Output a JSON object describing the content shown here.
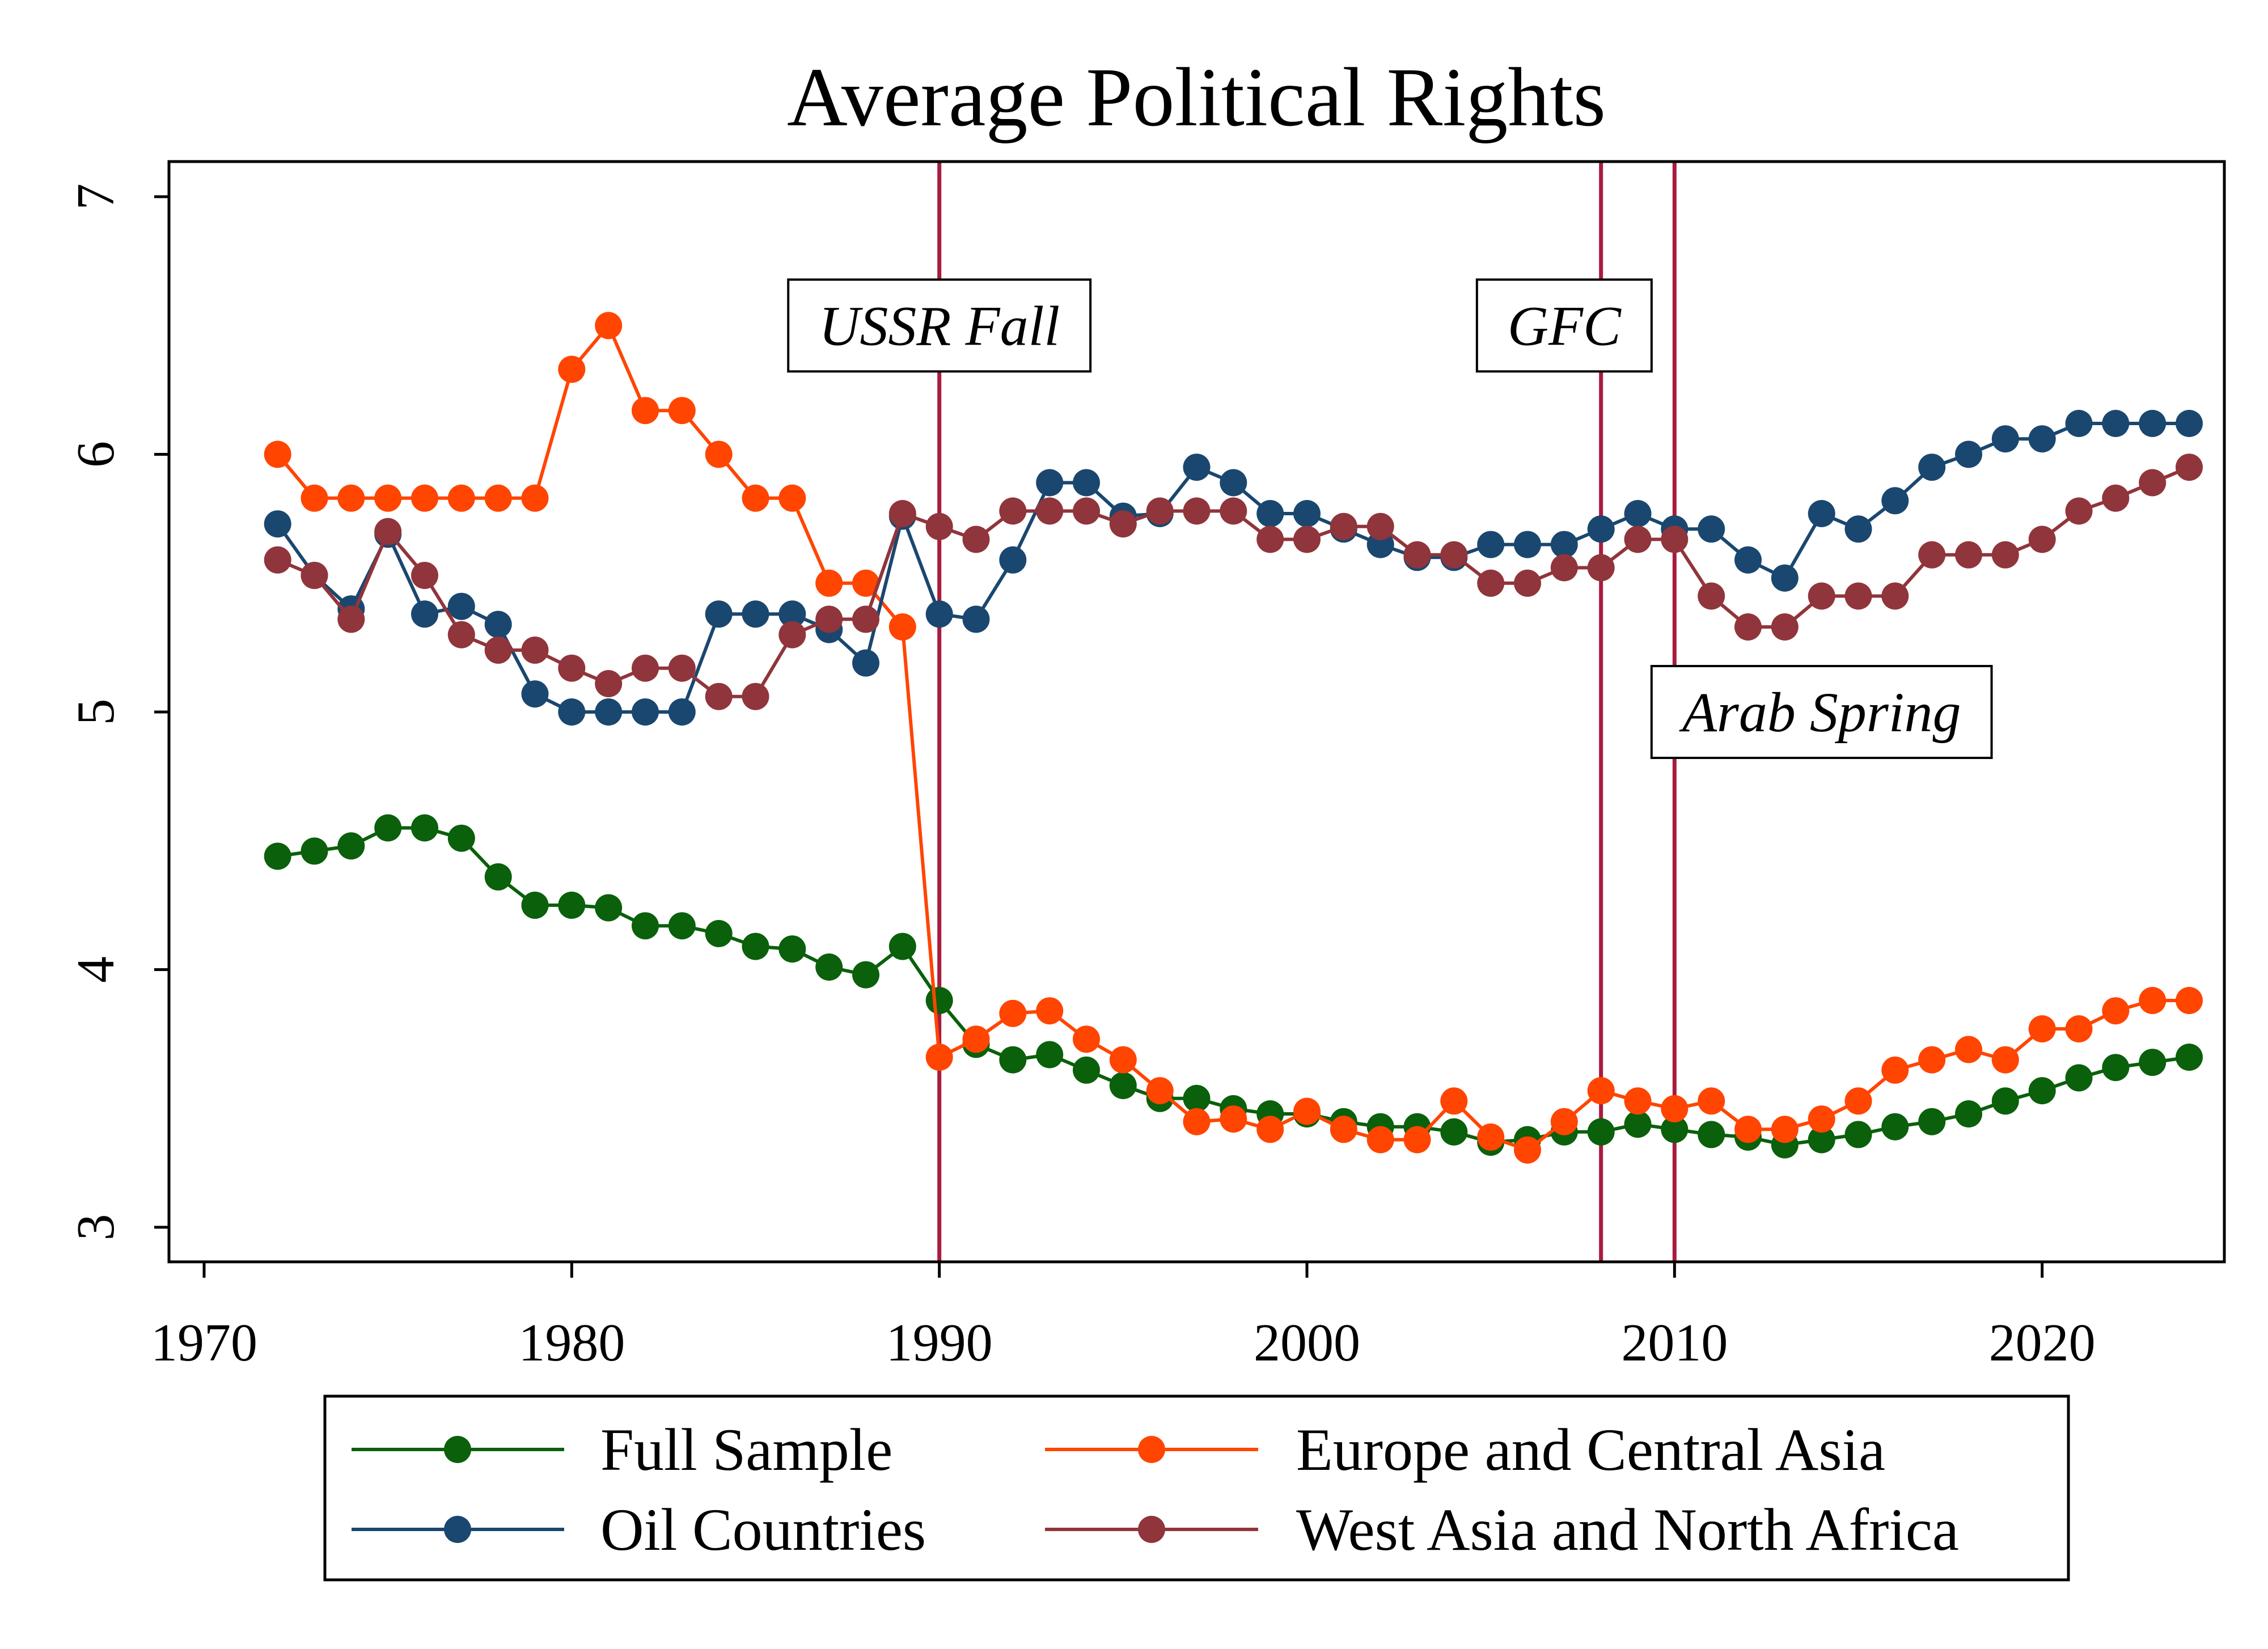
{
  "chart_data": {
    "type": "line",
    "title": "Average Political Rights",
    "xlim": [
      1970,
      2024
    ],
    "ylim": [
      3,
      7
    ],
    "xticks": [
      1970,
      1980,
      1990,
      2000,
      2010,
      2020
    ],
    "yticks": [
      3,
      4,
      5,
      6,
      7
    ],
    "grid": false,
    "legend_position": "bottom",
    "x": [
      1972,
      1973,
      1974,
      1975,
      1976,
      1977,
      1978,
      1979,
      1980,
      1981,
      1982,
      1983,
      1984,
      1985,
      1986,
      1987,
      1988,
      1989,
      1990,
      1991,
      1992,
      1993,
      1994,
      1995,
      1996,
      1997,
      1998,
      1999,
      2000,
      2001,
      2002,
      2003,
      2004,
      2005,
      2006,
      2007,
      2008,
      2009,
      2010,
      2011,
      2012,
      2013,
      2014,
      2015,
      2016,
      2017,
      2018,
      2019,
      2020,
      2021,
      2022,
      2023,
      2024
    ],
    "series": [
      {
        "name": "Full Sample",
        "color": "#0a600b",
        "values": [
          4.44,
          4.46,
          4.48,
          4.55,
          4.55,
          4.51,
          4.36,
          4.25,
          4.25,
          4.24,
          4.17,
          4.17,
          4.14,
          4.09,
          4.08,
          4.01,
          3.98,
          4.09,
          3.88,
          3.71,
          3.65,
          3.67,
          3.61,
          3.55,
          3.5,
          3.5,
          3.46,
          3.44,
          3.44,
          3.41,
          3.39,
          3.39,
          3.37,
          3.33,
          3.34,
          3.37,
          3.37,
          3.4,
          3.38,
          3.36,
          3.35,
          3.32,
          3.34,
          3.36,
          3.39,
          3.41,
          3.44,
          3.49,
          3.53,
          3.58,
          3.62,
          3.64,
          3.66
        ]
      },
      {
        "name": "Europe and Central Asia",
        "color": "#ff4500",
        "values": [
          6.0,
          5.83,
          5.83,
          5.83,
          5.83,
          5.83,
          5.83,
          5.83,
          6.33,
          6.5,
          6.17,
          6.17,
          6.0,
          5.83,
          5.83,
          5.5,
          5.5,
          5.33,
          3.66,
          3.73,
          3.83,
          3.84,
          3.73,
          3.65,
          3.53,
          3.41,
          3.42,
          3.38,
          3.45,
          3.38,
          3.34,
          3.34,
          3.49,
          3.35,
          3.3,
          3.41,
          3.53,
          3.49,
          3.46,
          3.49,
          3.38,
          3.38,
          3.42,
          3.49,
          3.61,
          3.65,
          3.69,
          3.65,
          3.77,
          3.77,
          3.84,
          3.88,
          3.88
        ]
      },
      {
        "name": "Oil Countries",
        "color": "#1a476f",
        "values": [
          5.73,
          5.53,
          5.4,
          5.69,
          5.38,
          5.41,
          5.34,
          5.07,
          5.0,
          5.0,
          5.0,
          5.0,
          5.38,
          5.38,
          5.38,
          5.32,
          5.19,
          5.76,
          5.38,
          5.36,
          5.59,
          5.89,
          5.89,
          5.76,
          5.77,
          5.95,
          5.89,
          5.77,
          5.77,
          5.71,
          5.65,
          5.6,
          5.6,
          5.65,
          5.65,
          5.65,
          5.71,
          5.77,
          5.71,
          5.71,
          5.59,
          5.52,
          5.77,
          5.71,
          5.82,
          5.95,
          6.0,
          6.06,
          6.06,
          6.12,
          6.12,
          6.12,
          6.12
        ]
      },
      {
        "name": "West Asia and North Africa",
        "color": "#90353b",
        "values": [
          5.59,
          5.53,
          5.36,
          5.7,
          5.53,
          5.3,
          5.24,
          5.24,
          5.17,
          5.11,
          5.17,
          5.17,
          5.06,
          5.06,
          5.3,
          5.36,
          5.36,
          5.77,
          5.72,
          5.67,
          5.78,
          5.78,
          5.78,
          5.73,
          5.78,
          5.78,
          5.78,
          5.67,
          5.67,
          5.72,
          5.72,
          5.61,
          5.61,
          5.5,
          5.5,
          5.56,
          5.56,
          5.67,
          5.67,
          5.45,
          5.33,
          5.33,
          5.45,
          5.45,
          5.45,
          5.61,
          5.61,
          5.61,
          5.67,
          5.78,
          5.83,
          5.89,
          5.95
        ]
      }
    ],
    "reference_lines": [
      {
        "axis": "x",
        "value": 1990,
        "color": "#a81c3e"
      },
      {
        "axis": "x",
        "value": 2008,
        "color": "#a81c3e"
      },
      {
        "axis": "x",
        "value": 2010,
        "color": "#a81c3e"
      }
    ],
    "annotations": [
      {
        "text": "USSR Fall",
        "x": 1990,
        "y": 6.5
      },
      {
        "text": "GFC",
        "x": 2007,
        "y": 6.5
      },
      {
        "text": "Arab Spring",
        "x": 2014,
        "y": 5
      }
    ]
  }
}
